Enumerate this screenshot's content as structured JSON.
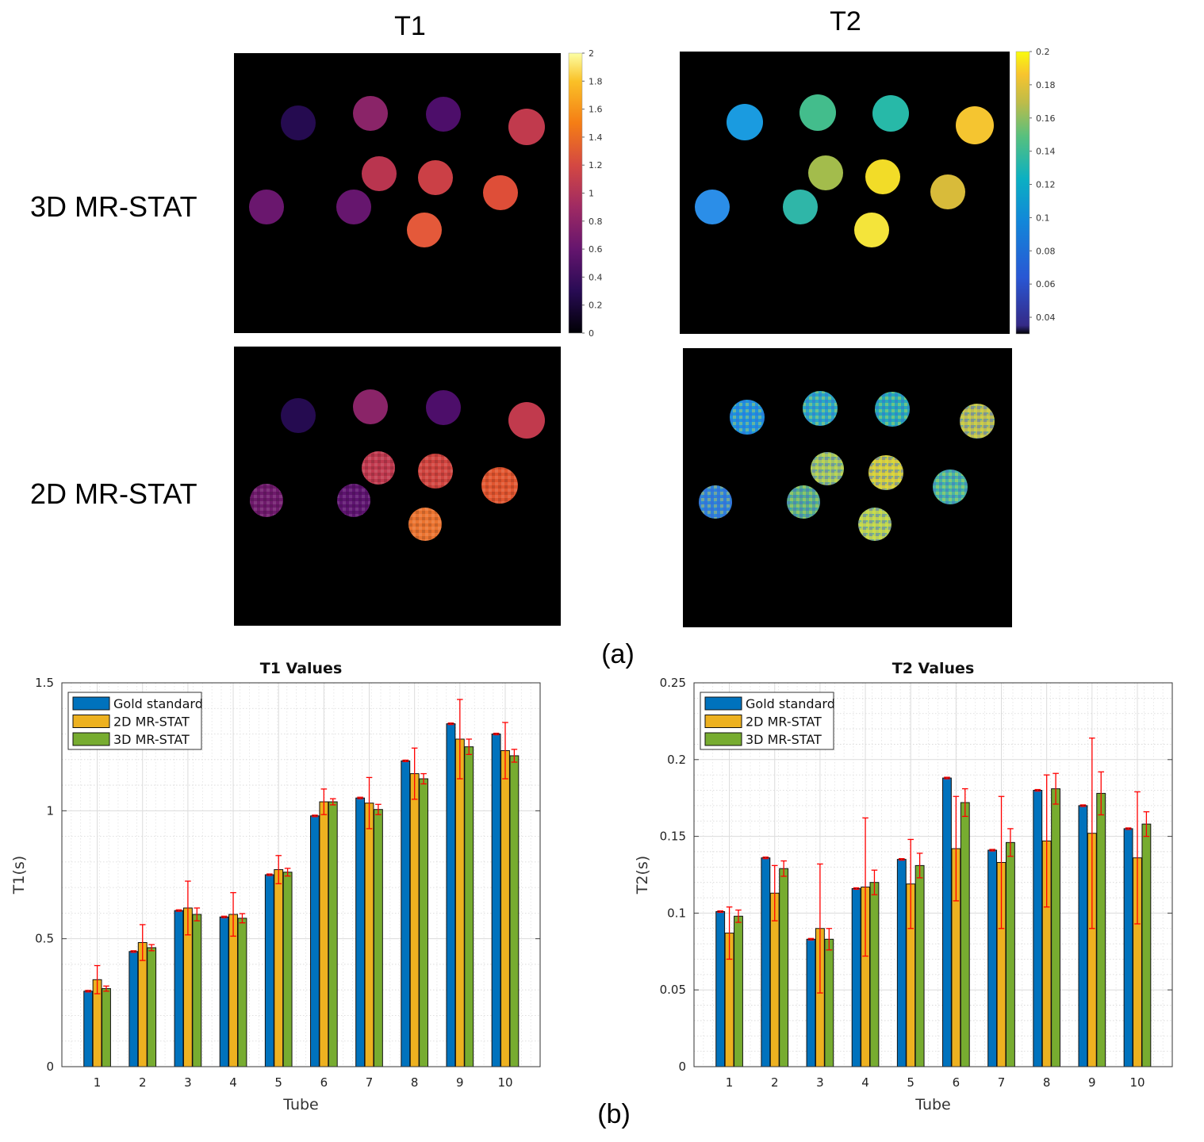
{
  "column_titles": {
    "t1": "T1",
    "t2": "T2"
  },
  "row_labels": {
    "row3d": "3D MR-STAT",
    "row2d": "2D MR-STAT"
  },
  "panel_labels": {
    "a": "(a)",
    "b": "(b)"
  },
  "colorbars": {
    "t1": {
      "ticks": [
        "2",
        "1.8",
        "1.6",
        "1.4",
        "1.2",
        "1",
        "0.8",
        "0.6",
        "0.4",
        "0.2",
        "0"
      ],
      "range": [
        0,
        2
      ],
      "colormap": "inferno"
    },
    "t2": {
      "ticks": [
        "0.2",
        "0.18",
        "0.16",
        "0.14",
        "0.12",
        "0.1",
        "0.08",
        "0.06",
        "0.04"
      ],
      "range": [
        0.03,
        0.2
      ],
      "colormap": "parula"
    }
  },
  "colors": {
    "gold": "#0072bd",
    "mr2d": "#edb120",
    "mr3d": "#77ac30",
    "errorbar": "#ff0000",
    "map_background": "#000000"
  },
  "chart_data": [
    {
      "type": "bar",
      "title": "T1 Values",
      "xlabel": "Tube",
      "ylabel": "T1(s)",
      "categories": [
        "1",
        "2",
        "3",
        "4",
        "5",
        "6",
        "7",
        "8",
        "9",
        "10"
      ],
      "ylim": [
        0,
        1.5
      ],
      "yticks": [
        "0",
        "0.5",
        "1",
        "1.5"
      ],
      "legend_position": "top-left",
      "series": [
        {
          "name": "Gold standard",
          "values": [
            0.295,
            0.45,
            0.61,
            0.585,
            0.75,
            0.98,
            1.05,
            1.195,
            1.34,
            1.3
          ],
          "err": [
            0.003,
            0.003,
            0.003,
            0.003,
            0.003,
            0.003,
            0.003,
            0.003,
            0.003,
            0.003
          ]
        },
        {
          "name": "2D MR-STAT",
          "values": [
            0.34,
            0.485,
            0.62,
            0.595,
            0.77,
            1.035,
            1.03,
            1.145,
            1.28,
            1.235
          ],
          "err": [
            0.055,
            0.07,
            0.105,
            0.085,
            0.055,
            0.05,
            0.1,
            0.1,
            0.155,
            0.11
          ]
        },
        {
          "name": "3D MR-STAT",
          "values": [
            0.305,
            0.465,
            0.595,
            0.58,
            0.76,
            1.035,
            1.005,
            1.125,
            1.25,
            1.215
          ],
          "err": [
            0.01,
            0.012,
            0.025,
            0.018,
            0.015,
            0.012,
            0.02,
            0.02,
            0.03,
            0.025
          ]
        }
      ]
    },
    {
      "type": "bar",
      "title": "T2 Values",
      "xlabel": "Tube",
      "ylabel": "T2(s)",
      "categories": [
        "1",
        "2",
        "3",
        "4",
        "5",
        "6",
        "7",
        "8",
        "9",
        "10"
      ],
      "ylim": [
        0,
        0.25
      ],
      "yticks": [
        "0",
        "0.05",
        "0.1",
        "0.15",
        "0.2",
        "0.25"
      ],
      "legend_position": "top-left",
      "series": [
        {
          "name": "Gold standard",
          "values": [
            0.101,
            0.136,
            0.083,
            0.116,
            0.135,
            0.188,
            0.141,
            0.18,
            0.17,
            0.155
          ],
          "err": [
            0.0005,
            0.0005,
            0.0005,
            0.0005,
            0.0005,
            0.0005,
            0.0005,
            0.0005,
            0.0005,
            0.0005
          ]
        },
        {
          "name": "2D MR-STAT",
          "values": [
            0.087,
            0.113,
            0.09,
            0.117,
            0.119,
            0.142,
            0.133,
            0.147,
            0.152,
            0.136
          ],
          "err": [
            0.017,
            0.018,
            0.042,
            0.045,
            0.029,
            0.034,
            0.043,
            0.043,
            0.062,
            0.043
          ]
        },
        {
          "name": "3D MR-STAT",
          "values": [
            0.098,
            0.129,
            0.083,
            0.12,
            0.131,
            0.172,
            0.146,
            0.181,
            0.178,
            0.158
          ],
          "err": [
            0.004,
            0.005,
            0.007,
            0.008,
            0.008,
            0.009,
            0.009,
            0.01,
            0.014,
            0.008
          ]
        }
      ]
    }
  ]
}
